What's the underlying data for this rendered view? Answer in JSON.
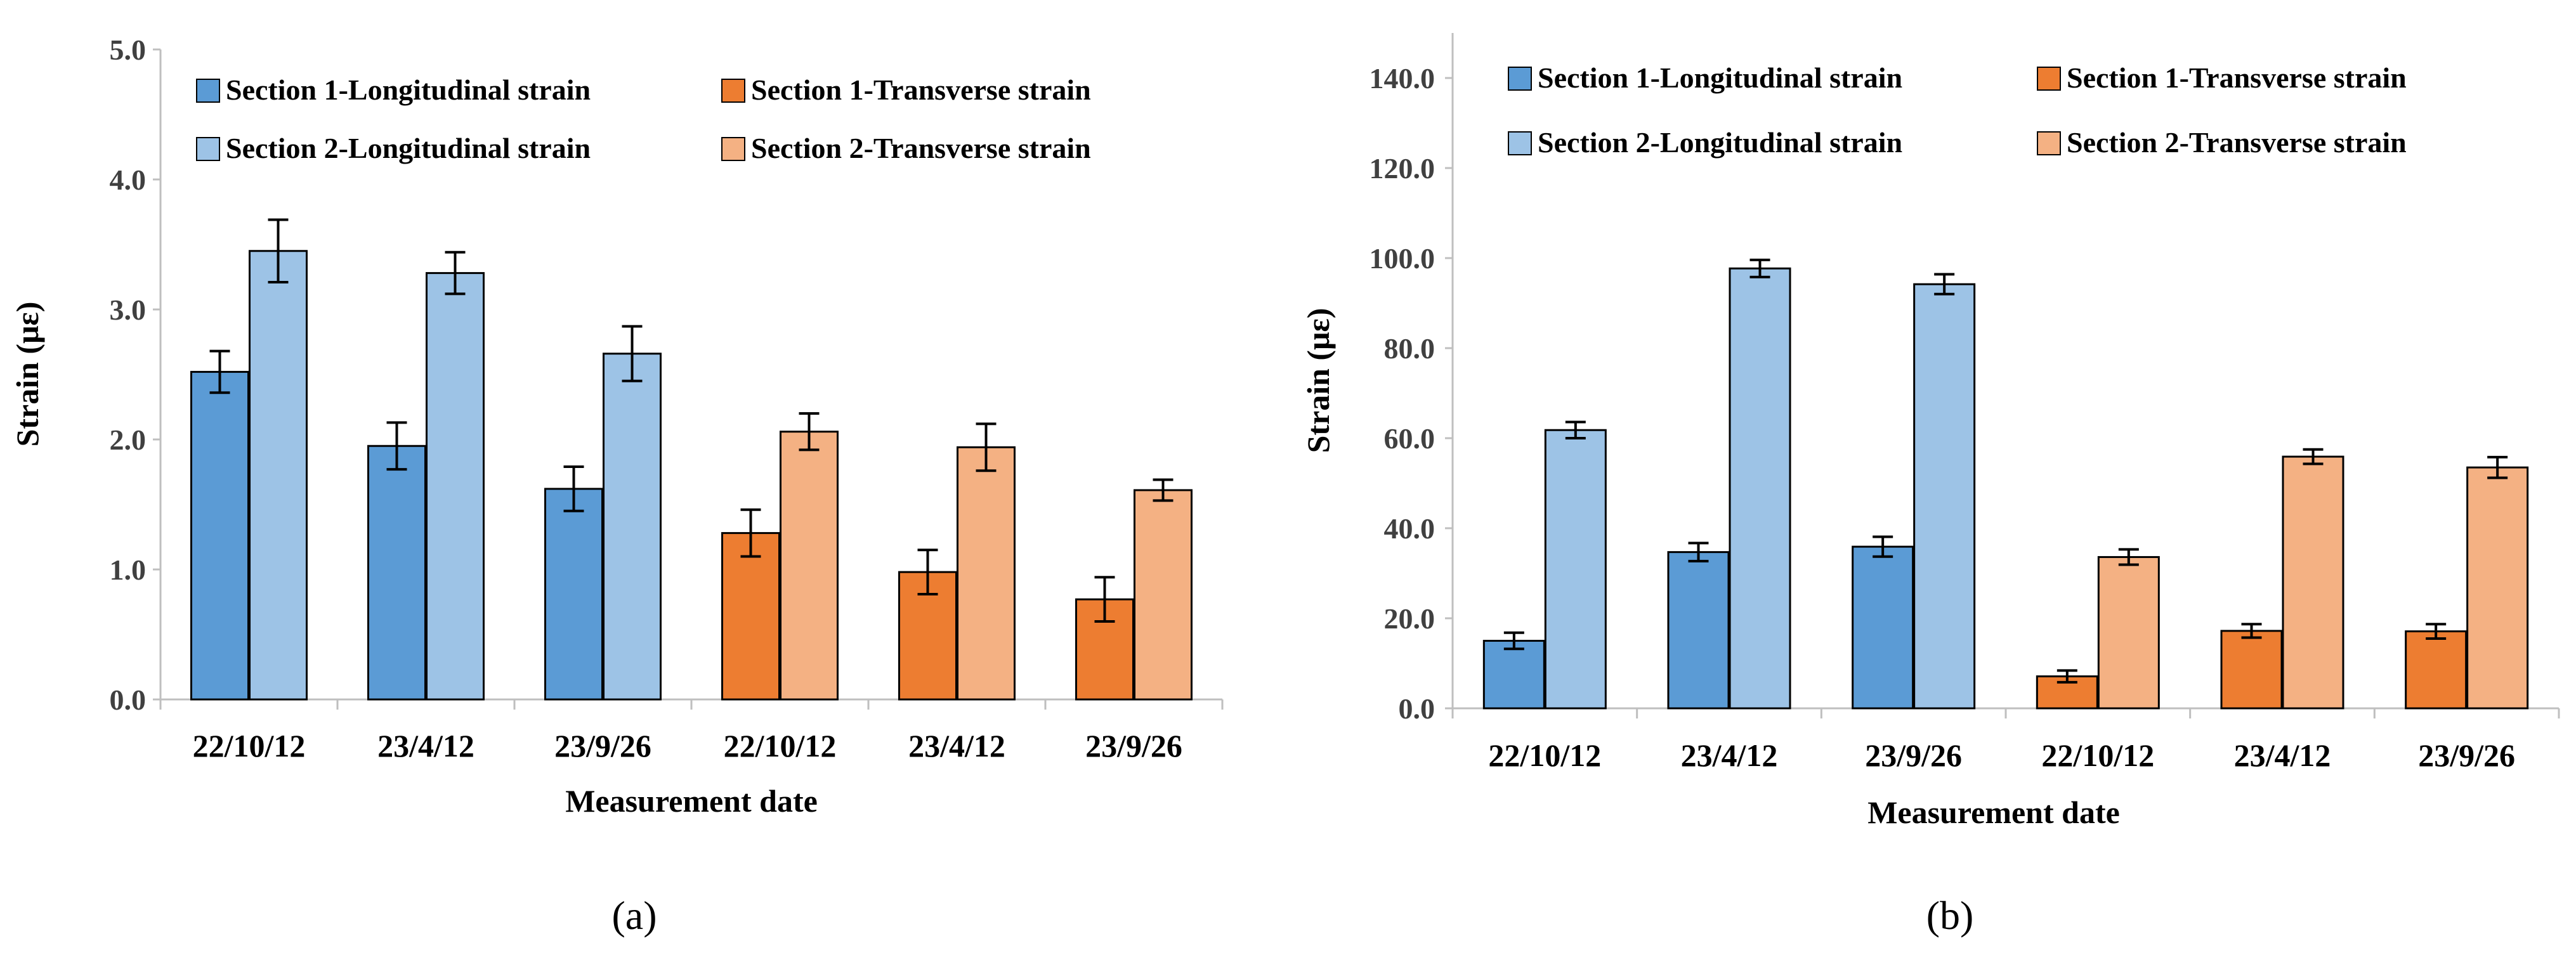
{
  "chart_data": [
    {
      "type": "bar",
      "panel_label": "(a)",
      "ylabel": "Strain (με)",
      "xlabel": "Measurement date",
      "ylim": [
        0,
        5
      ],
      "yticks": [
        "0.0",
        "1.0",
        "2.0",
        "3.0",
        "4.0",
        "5.0"
      ],
      "ytick_values": [
        0,
        1,
        2,
        3,
        4,
        5
      ],
      "categories": [
        "22/10/12",
        "23/4/12",
        "23/9/26",
        "22/10/12",
        "23/4/12",
        "23/9/26"
      ],
      "legend_position": "top",
      "series": [
        {
          "name": "Section 1-Longitudinal strain",
          "color": "#5b9bd5",
          "values": [
            2.52,
            1.95,
            1.62,
            null,
            null,
            null
          ],
          "errors": [
            0.16,
            0.18,
            0.17,
            null,
            null,
            null
          ]
        },
        {
          "name": "Section 2-Longitudinal strain",
          "color": "#9dc3e6",
          "values": [
            3.45,
            3.28,
            2.66,
            null,
            null,
            null
          ],
          "errors": [
            0.24,
            0.16,
            0.21,
            null,
            null,
            null
          ]
        },
        {
          "name": "Section 1-Transverse strain",
          "color": "#ed7d31",
          "values": [
            null,
            null,
            null,
            1.28,
            0.98,
            0.77
          ],
          "errors": [
            null,
            null,
            null,
            0.18,
            0.17,
            0.17
          ]
        },
        {
          "name": "Section 2-Transverse strain",
          "color": "#f4b183",
          "values": [
            null,
            null,
            null,
            2.06,
            1.94,
            1.61
          ],
          "errors": [
            null,
            null,
            null,
            0.14,
            0.18,
            0.08
          ]
        }
      ]
    },
    {
      "type": "bar",
      "panel_label": "(b)",
      "ylabel": "Strain (με)",
      "xlabel": "Measurement date",
      "ylim": [
        0,
        150
      ],
      "yticks": [
        "0.0",
        "20.0",
        "40.0",
        "60.0",
        "80.0",
        "100.0",
        "120.0",
        "140.0"
      ],
      "ytick_values": [
        0,
        20,
        40,
        60,
        80,
        100,
        120,
        140
      ],
      "categories": [
        "22/10/12",
        "23/4/12",
        "23/9/26",
        "22/10/12",
        "23/4/12",
        "23/9/26"
      ],
      "legend_position": "top",
      "series": [
        {
          "name": "Section 1-Longitudinal strain",
          "color": "#5b9bd5",
          "values": [
            15.0,
            34.7,
            35.9,
            null,
            null,
            null
          ],
          "errors": [
            1.8,
            2.0,
            2.2,
            null,
            null,
            null
          ]
        },
        {
          "name": "Section 2-Longitudinal strain",
          "color": "#9dc3e6",
          "values": [
            61.8,
            97.7,
            94.2,
            null,
            null,
            null
          ],
          "errors": [
            1.8,
            1.9,
            2.2,
            null,
            null,
            null
          ]
        },
        {
          "name": "Section 1-Transverse strain",
          "color": "#ed7d31",
          "values": [
            null,
            null,
            null,
            7.1,
            17.2,
            17.1
          ],
          "errors": [
            null,
            null,
            null,
            1.3,
            1.5,
            1.6
          ]
        },
        {
          "name": "Section 2-Transverse strain",
          "color": "#f4b183",
          "values": [
            null,
            null,
            null,
            33.6,
            55.9,
            53.5
          ],
          "errors": [
            null,
            null,
            null,
            1.7,
            1.6,
            2.3
          ]
        }
      ]
    }
  ]
}
